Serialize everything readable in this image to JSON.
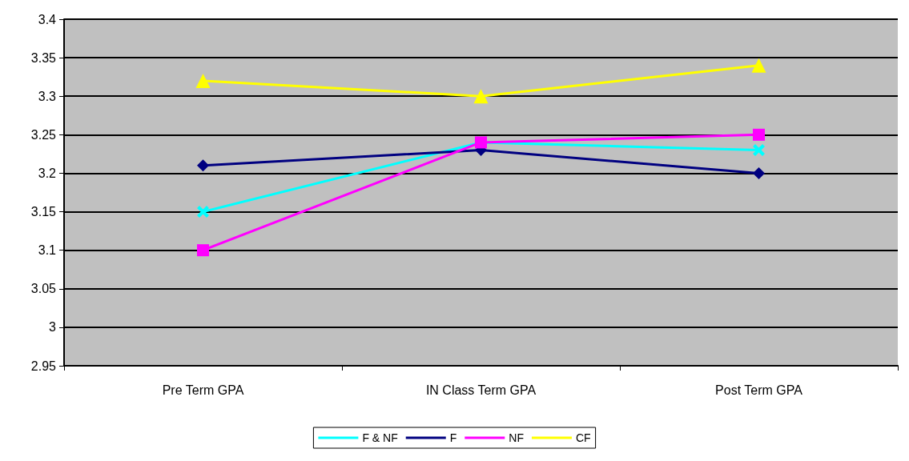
{
  "chart_data": {
    "type": "line",
    "categories": [
      "Pre Term GPA",
      "IN Class Term GPA",
      "Post Term GPA"
    ],
    "series": [
      {
        "name": "F & NF",
        "color": "#00ffff",
        "marker": "cross",
        "values": [
          3.15,
          3.24,
          3.23
        ]
      },
      {
        "name": "F",
        "color": "#000080",
        "marker": "diamond",
        "values": [
          3.21,
          3.23,
          3.2
        ]
      },
      {
        "name": "NF",
        "color": "#ff00ff",
        "marker": "square",
        "values": [
          3.1,
          3.24,
          3.25
        ]
      },
      {
        "name": "CF",
        "color": "#ffff00",
        "marker": "triangle",
        "values": [
          3.32,
          3.3,
          3.34
        ]
      }
    ],
    "ylim": [
      2.95,
      3.4
    ],
    "yticks": [
      2.95,
      3,
      3.05,
      3.1,
      3.15,
      3.2,
      3.25,
      3.3,
      3.35,
      3.4
    ],
    "grid": "y",
    "legend": "bottom",
    "line_style": "solid"
  }
}
